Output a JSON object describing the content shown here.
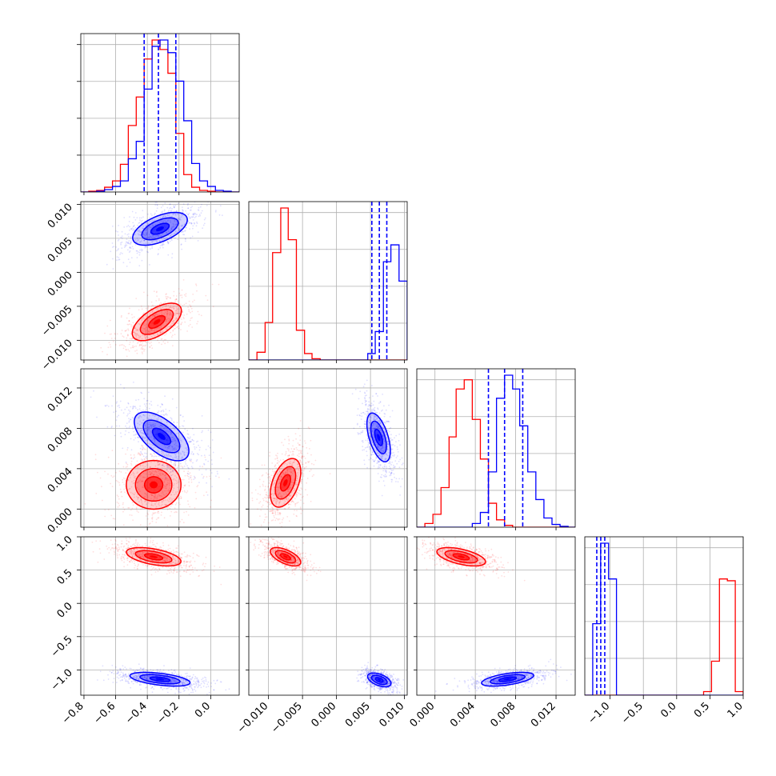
{
  "chart_data": {
    "type": "corner",
    "parameters": [
      {
        "index": 0,
        "range": [
          -0.82,
          0.18
        ],
        "ticks": [
          -0.8,
          -0.6,
          -0.4,
          -0.2,
          0.0
        ],
        "tick_labels": [
          "−0.8",
          "−0.6",
          "−0.4",
          "−0.2",
          "0.0"
        ]
      },
      {
        "index": 1,
        "range": [
          -0.0129,
          0.0104
        ],
        "ticks": [
          -0.01,
          -0.005,
          0.0,
          0.005,
          0.01
        ],
        "tick_labels": [
          "−0.010",
          "−0.005",
          "0.000",
          "0.005",
          "0.010"
        ]
      },
      {
        "index": 2,
        "range": [
          -0.0018,
          0.0139
        ],
        "ticks": [
          0.0,
          0.004,
          0.008,
          0.012
        ],
        "tick_labels": [
          "0.000",
          "0.004",
          "0.008",
          "0.012"
        ]
      },
      {
        "index": 3,
        "range": [
          -1.38,
          1.0
        ],
        "ticks": [
          -1.0,
          -0.5,
          0.0,
          0.5,
          1.0
        ],
        "tick_labels": [
          "−1.0",
          "−0.5",
          "0.0",
          "0.5",
          "1.0"
        ]
      }
    ],
    "series": [
      {
        "color": "#ff0000",
        "quantile_lines": false,
        "histograms": [
          {
            "edges": [
              -0.82,
              -0.77,
              -0.72,
              -0.67,
              -0.62,
              -0.57,
              -0.52,
              -0.47,
              -0.42,
              -0.37,
              -0.32,
              -0.27,
              -0.22,
              -0.17,
              -0.12,
              -0.07,
              -0.02,
              0.03,
              0.08,
              0.13,
              0.18
            ],
            "counts": [
              0,
              1,
              2,
              6,
              14,
              35,
              84,
              120,
              168,
              192,
              180,
              150,
              74,
              22,
              6,
              2,
              1,
              0,
              0,
              0
            ]
          },
          {
            "edges": [
              -0.0129,
              -0.0117,
              -0.0105,
              -0.0094,
              -0.0082,
              -0.0071,
              -0.0059,
              -0.0047,
              -0.0036,
              -0.0024,
              -0.0013,
              -0.0001,
              0.0011,
              0.0022,
              0.0034,
              0.0046,
              0.0057,
              0.0069,
              0.008,
              0.0092,
              0.0104
            ],
            "counts": [
              0,
              12,
              58,
              166,
              235,
              186,
              46,
              10,
              2,
              0,
              0,
              0,
              0,
              0,
              0,
              0,
              0,
              0,
              0,
              0
            ]
          },
          {
            "edges": [
              -0.0018,
              -0.001,
              -0.0002,
              0.0006,
              0.0014,
              0.0021,
              0.0029,
              0.0037,
              0.0045,
              0.0053,
              0.0061,
              0.0069,
              0.0077,
              0.0084,
              0.0092,
              0.01,
              0.0108,
              0.0116,
              0.0124,
              0.0132,
              0.0139
            ],
            "counts": [
              0,
              4,
              14,
              43,
              98,
              150,
              160,
              117,
              74,
              26,
              8,
              2,
              0,
              0,
              0,
              0,
              0,
              0,
              0,
              0
            ]
          },
          {
            "edges": [
              -1.38,
              -1.261,
              -1.142,
              -1.023,
              -0.904,
              -0.785,
              -0.666,
              -0.547,
              -0.428,
              -0.309,
              -0.19,
              -0.071,
              0.048,
              0.167,
              0.286,
              0.405,
              0.524,
              0.643,
              0.762,
              0.881,
              1.0
            ],
            "counts": [
              0,
              0,
              0,
              0,
              0,
              0,
              0,
              0,
              0,
              0,
              0,
              0,
              0,
              0,
              0,
              4,
              38,
              130,
              128,
              4
            ]
          }
        ],
        "scatter_2d": [
          {
            "pair": [
              0,
              1
            ],
            "center": [
              -0.34,
              -0.0073
            ],
            "sigma": [
              0.09,
              0.0016
            ],
            "rho": 0.6
          },
          {
            "pair": [
              0,
              2
            ],
            "center": [
              -0.36,
              0.0024
            ],
            "sigma": [
              0.1,
              0.0014
            ],
            "rho": 0.0
          },
          {
            "pair": [
              0,
              3
            ],
            "center": [
              -0.36,
              0.7
            ],
            "sigma": [
              0.1,
              0.08
            ],
            "rho": -0.5
          },
          {
            "pair": [
              1,
              2
            ],
            "center": [
              -0.0075,
              0.0026
            ],
            "sigma": [
              0.0013,
              0.0014
            ],
            "rho": 0.45
          },
          {
            "pair": [
              1,
              3
            ],
            "center": [
              -0.0075,
              0.7
            ],
            "sigma": [
              0.0013,
              0.08
            ],
            "rho": -0.6
          },
          {
            "pair": [
              2,
              3
            ],
            "center": [
              0.0026,
              0.7
            ],
            "sigma": [
              0.0014,
              0.08
            ],
            "rho": -0.55
          }
        ]
      },
      {
        "color": "#0000ff",
        "quantile_lines": true,
        "quantiles": [
          [
            -0.42,
            -0.33,
            -0.22
          ],
          [
            0.0052,
            0.0063,
            0.0074
          ],
          [
            0.0053,
            0.0069,
            0.0087
          ],
          [
            -1.2,
            -1.14,
            -1.08
          ]
        ],
        "histograms": [
          {
            "edges": [
              -0.82,
              -0.77,
              -0.72,
              -0.67,
              -0.62,
              -0.57,
              -0.52,
              -0.47,
              -0.42,
              -0.37,
              -0.32,
              -0.27,
              -0.22,
              -0.17,
              -0.12,
              -0.07,
              -0.02,
              0.03,
              0.08,
              0.13,
              0.18
            ],
            "counts": [
              0,
              0,
              1,
              3,
              7,
              14,
              42,
              64,
              130,
              184,
              192,
              176,
              140,
              90,
              36,
              14,
              7,
              2,
              1,
              0
            ]
          },
          {
            "edges": [
              -0.0129,
              -0.0117,
              -0.0105,
              -0.0094,
              -0.0082,
              -0.0071,
              -0.0059,
              -0.0047,
              -0.0036,
              -0.0024,
              -0.0013,
              -0.0001,
              0.0011,
              0.0022,
              0.0034,
              0.0046,
              0.0057,
              0.0069,
              0.008,
              0.0092,
              0.0104
            ],
            "counts": [
              0,
              0,
              0,
              0,
              0,
              0,
              0,
              0,
              0,
              0,
              0,
              0,
              0,
              0,
              0,
              10,
              44,
              152,
              178,
              122
            ]
          },
          {
            "edges": [
              -0.0018,
              -0.001,
              -0.0002,
              0.0006,
              0.0014,
              0.0021,
              0.0029,
              0.0037,
              0.0045,
              0.0053,
              0.0061,
              0.0069,
              0.0077,
              0.0084,
              0.0092,
              0.01,
              0.0108,
              0.0116,
              0.0124,
              0.0132,
              0.0139
            ],
            "counts": [
              0,
              0,
              0,
              0,
              0,
              0,
              0,
              4,
              16,
              60,
              140,
              165,
              150,
              110,
              60,
              30,
              10,
              3,
              1,
              0
            ]
          },
          {
            "edges": [
              -1.38,
              -1.261,
              -1.142,
              -1.023,
              -0.904,
              -0.785,
              -0.666,
              -0.547,
              -0.428,
              -0.309,
              -0.19,
              -0.071,
              0.048,
              0.167,
              0.286,
              0.405,
              0.524,
              0.643,
              0.762,
              0.881,
              1.0
            ],
            "counts": [
              0,
              80,
              170,
              130,
              0,
              0,
              0,
              0,
              0,
              0,
              0,
              0,
              0,
              0,
              0,
              0,
              0,
              0,
              0,
              0
            ]
          }
        ],
        "scatter_2d": [
          {
            "pair": [
              0,
              1
            ],
            "center": [
              -0.32,
              0.0064
            ],
            "sigma": [
              0.1,
              0.0014
            ],
            "rho": 0.55
          },
          {
            "pair": [
              0,
              2
            ],
            "center": [
              -0.31,
              0.0072
            ],
            "sigma": [
              0.1,
              0.0014
            ],
            "rho": -0.6
          },
          {
            "pair": [
              0,
              3
            ],
            "center": [
              -0.32,
              -1.14
            ],
            "sigma": [
              0.11,
              0.06
            ],
            "rho": -0.5
          },
          {
            "pair": [
              1,
              2
            ],
            "center": [
              0.0062,
              0.0071
            ],
            "sigma": [
              0.001,
              0.0014
            ],
            "rho": -0.55
          },
          {
            "pair": [
              1,
              3
            ],
            "center": [
              0.0063,
              -1.15
            ],
            "sigma": [
              0.001,
              0.06
            ],
            "rho": -0.5
          },
          {
            "pair": [
              2,
              3
            ],
            "center": [
              0.0072,
              -1.14
            ],
            "sigma": [
              0.0015,
              0.06
            ],
            "rho": 0.55
          }
        ]
      }
    ],
    "grid": true,
    "contour_levels": [
      0.5,
      1.0,
      1.5
    ]
  }
}
